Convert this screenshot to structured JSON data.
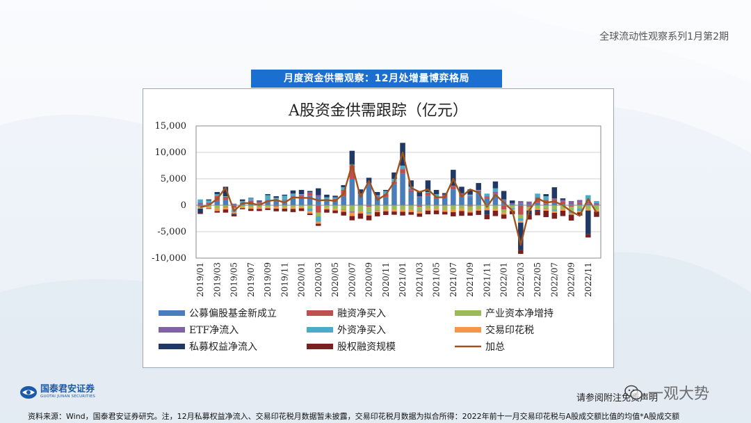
{
  "header": {
    "series_title": "全球流动性观察系列1月第2期",
    "banner": "月度资金供需观察：12月处增量博弈格局"
  },
  "footer": {
    "logo_cn": "国泰君安证券",
    "logo_en": "GUOTAI JUNAN SECURITIES",
    "notice": "请参阅附注免责声明",
    "watermark": "一观大势",
    "source": "资料来源：Wind，国泰君安证券研究。注，12月私募权益净流入、交易印花税月数据暂未披露，交易印花税月数据为拟合所得：2022年前十一月交易印花税与A股成交额比值的均值*A股成交额"
  },
  "colors": {
    "fund": "#4a7ebb",
    "margin": "#c0504d",
    "industry": "#9bbb59",
    "etf": "#8064a2",
    "foreign": "#4bacc6",
    "stamp": "#f79646",
    "private": "#1f3864",
    "equity": "#7b1f1f",
    "total": "#a0521d"
  },
  "chart_data": {
    "type": "bar",
    "stacked": true,
    "title": "A股资金供需跟踪（亿元）",
    "ylim": [
      -10000,
      15000
    ],
    "yticks": [
      15000,
      10000,
      5000,
      0,
      -5000,
      -10000
    ],
    "ytick_labels": [
      "15,000",
      "10,000",
      "5,000",
      "0",
      "-5,000",
      "-10,000"
    ],
    "xtick_labels": [
      "2019/01",
      "2019/03",
      "2019/05",
      "2019/07",
      "2019/09",
      "2019/11",
      "2020/01",
      "2020/03",
      "2020/05",
      "2020/07",
      "2020/09",
      "2020/11",
      "2021/01",
      "2021/03",
      "2021/05",
      "2021/07",
      "2021/09",
      "2021/11",
      "2022/01",
      "2022/03",
      "2022/05",
      "2022/07",
      "2022/09",
      "2022/11"
    ],
    "grid": true,
    "legend_position": "bottom",
    "categories": [
      "2019/01",
      "2019/02",
      "2019/03",
      "2019/04",
      "2019/05",
      "2019/06",
      "2019/07",
      "2019/08",
      "2019/09",
      "2019/10",
      "2019/11",
      "2019/12",
      "2020/01",
      "2020/02",
      "2020/03",
      "2020/04",
      "2020/05",
      "2020/06",
      "2020/07",
      "2020/08",
      "2020/09",
      "2020/10",
      "2020/11",
      "2020/12",
      "2021/01",
      "2021/02",
      "2021/03",
      "2021/04",
      "2021/05",
      "2021/06",
      "2021/07",
      "2021/08",
      "2021/09",
      "2021/10",
      "2021/11",
      "2021/12",
      "2022/01",
      "2022/02",
      "2022/03",
      "2022/04",
      "2022/05",
      "2022/06",
      "2022/07",
      "2022/08",
      "2022/09",
      "2022/10",
      "2022/11",
      "2022/12"
    ],
    "series": [
      {
        "name": "公募偏股基金新成立",
        "key": "fund",
        "values": [
          200,
          100,
          800,
          1000,
          200,
          300,
          400,
          300,
          700,
          800,
          900,
          1200,
          1400,
          1800,
          1500,
          900,
          800,
          1700,
          5000,
          2000,
          4000,
          1500,
          1500,
          4000,
          6000,
          2500,
          1500,
          1800,
          1200,
          1500,
          3000,
          1600,
          1500,
          2500,
          1200,
          2000,
          700,
          200,
          300,
          200,
          500,
          300,
          400,
          200,
          100,
          200,
          300,
          0
        ]
      },
      {
        "name": "融资净买入",
        "key": "margin",
        "values": [
          -200,
          300,
          1000,
          600,
          -500,
          100,
          400,
          300,
          200,
          -200,
          100,
          300,
          400,
          500,
          -1400,
          100,
          400,
          1200,
          2500,
          100,
          -300,
          200,
          600,
          400,
          800,
          300,
          -300,
          500,
          300,
          400,
          600,
          500,
          -200,
          200,
          300,
          200,
          -800,
          -100,
          -1800,
          -300,
          600,
          700,
          700,
          500,
          -300,
          300,
          100,
          0
        ]
      },
      {
        "name": "产业资本净增持",
        "key": "industry",
        "values": [
          -300,
          -300,
          -600,
          -300,
          -300,
          -300,
          -400,
          -300,
          -300,
          -200,
          -400,
          -400,
          -300,
          -600,
          -700,
          -500,
          -700,
          -800,
          -1200,
          -1000,
          -1000,
          -900,
          -800,
          -800,
          -800,
          -900,
          -700,
          -700,
          -700,
          -800,
          -900,
          -700,
          -800,
          -700,
          -600,
          -700,
          -600,
          -400,
          -600,
          -400,
          -600,
          -600,
          -800,
          -700,
          -800,
          -600,
          -700,
          -900
        ]
      },
      {
        "name": "ETF净流入",
        "key": "etf",
        "values": [
          300,
          100,
          0,
          -100,
          100,
          0,
          100,
          100,
          100,
          100,
          100,
          200,
          200,
          200,
          400,
          0,
          100,
          -100,
          -200,
          100,
          200,
          -100,
          100,
          100,
          100,
          300,
          200,
          100,
          100,
          100,
          100,
          200,
          200,
          100,
          200,
          300,
          300,
          200,
          500,
          500,
          400,
          -100,
          200,
          300,
          700,
          500,
          300,
          400
        ]
      },
      {
        "name": "外资净买入",
        "key": "foreign",
        "values": [
          600,
          400,
          300,
          100,
          -500,
          400,
          400,
          -100,
          900,
          500,
          700,
          500,
          100,
          -500,
          -1000,
          500,
          200,
          500,
          200,
          -100,
          -300,
          200,
          500,
          500,
          600,
          400,
          -200,
          100,
          500,
          -100,
          0,
          0,
          300,
          100,
          500,
          700,
          100,
          -300,
          -500,
          0,
          700,
          700,
          -300,
          0,
          -400,
          -500,
          1200,
          400
        ]
      },
      {
        "name": "交易印花税",
        "key": "stamp",
        "values": [
          -150,
          -300,
          -500,
          -400,
          -300,
          -250,
          -280,
          -300,
          -300,
          -250,
          -260,
          -300,
          -300,
          -450,
          -400,
          -300,
          -300,
          -350,
          -650,
          -450,
          -350,
          -300,
          -350,
          -400,
          -450,
          -400,
          -380,
          -320,
          -300,
          -350,
          -400,
          -400,
          -380,
          -330,
          -350,
          -350,
          -350,
          -300,
          -400,
          -300,
          -300,
          -350,
          -350,
          -350,
          -300,
          -250,
          -300,
          -300
        ]
      },
      {
        "name": "私募权益净流入",
        "key": "private",
        "values": [
          -800,
          200,
          400,
          1800,
          -200,
          300,
          100,
          200,
          200,
          300,
          200,
          600,
          800,
          200,
          1300,
          500,
          300,
          400,
          2600,
          800,
          1000,
          600,
          200,
          1200,
          4300,
          1200,
          1000,
          2200,
          800,
          300,
          3000,
          1200,
          1000,
          1300,
          -800,
          1300,
          1600,
          500,
          -5200,
          -800,
          -300,
          400,
          2100,
          300,
          -100,
          0,
          -4500,
          0
        ]
      },
      {
        "name": "股权融资规模",
        "key": "equity",
        "values": [
          -200,
          -100,
          -300,
          -600,
          -300,
          -200,
          -400,
          -400,
          -300,
          -500,
          -500,
          -600,
          -500,
          -300,
          -400,
          -600,
          -500,
          -700,
          -800,
          -1000,
          -900,
          -800,
          -700,
          -600,
          -700,
          -500,
          -600,
          -700,
          -700,
          -500,
          -800,
          -900,
          -600,
          -800,
          -900,
          -1000,
          -800,
          -600,
          -700,
          -900,
          -700,
          -1200,
          -1100,
          -1000,
          -1000,
          -600,
          -600,
          -1000
        ]
      },
      {
        "name": "加总",
        "key": "total",
        "type": "line",
        "values": [
          -400,
          0,
          1200,
          3300,
          -1100,
          400,
          400,
          0,
          800,
          1000,
          500,
          1500,
          1400,
          1400,
          900,
          1000,
          800,
          2200,
          7700,
          1500,
          4600,
          1000,
          2000,
          4400,
          10000,
          3300,
          2500,
          3000,
          1500,
          1500,
          5000,
          1600,
          3000,
          2400,
          -300,
          2000,
          500,
          -1000,
          -7500,
          -1000,
          1300,
          500,
          700,
          0,
          -1200,
          -2000,
          1200,
          -1400
        ]
      }
    ]
  }
}
